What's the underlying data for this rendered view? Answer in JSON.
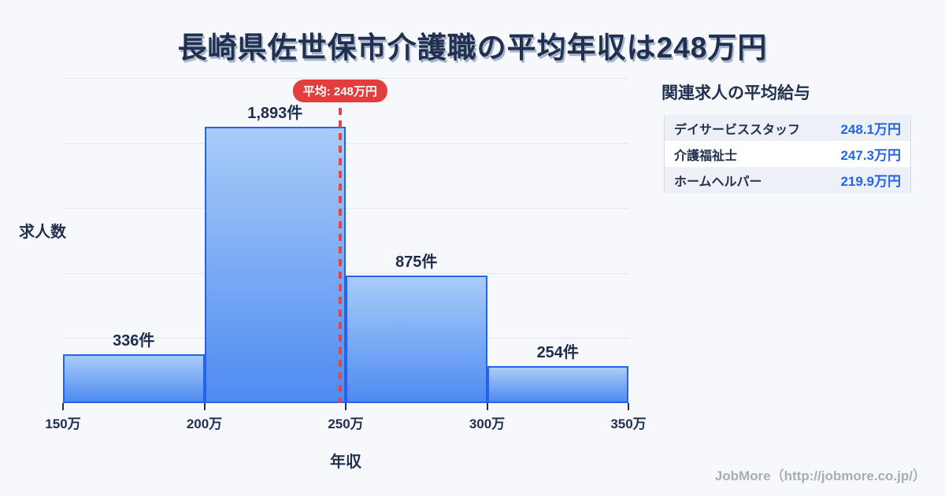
{
  "title": "長崎県佐世保市介護職の平均年収は248万円",
  "chart_data": {
    "type": "bar",
    "title": "長崎県佐世保市介護職の平均年収は248万円",
    "xlabel": "年収",
    "ylabel": "求人数",
    "x_tick_labels": [
      "150万",
      "200万",
      "250万",
      "300万",
      "350万"
    ],
    "x_range_man_yen": [
      150,
      350
    ],
    "bin_width_man_yen": 50,
    "categories": [
      "150万-200万",
      "200万-250万",
      "250万-300万",
      "300万-350万"
    ],
    "values": [
      336,
      1893,
      875,
      254
    ],
    "bar_labels": [
      "336件",
      "1,893件",
      "875件",
      "254件"
    ],
    "average_line": {
      "value_man_yen": 248,
      "label": "平均: 248万円"
    },
    "ylim": [
      0,
      2230
    ],
    "grid": "horizontal gridlines only, y-axis unlabeled",
    "legend": "none",
    "colors": {
      "bar_fill_top": "#a9ccf8",
      "bar_fill_bottom": "#4e8bf1",
      "bar_border": "#2563eb",
      "average_line_red": "#e54545",
      "badge_bg": "#e33d3d",
      "badge_text": "#ffffff",
      "gridline": "#e3e8ef",
      "text_navy": "#22304f",
      "value_blue": "#2563eb",
      "background": "#f7f8fb"
    }
  },
  "side_panel": {
    "title": "関連求人の平均給与",
    "rows": [
      {
        "label": "デイサービススタッフ",
        "value": "248.1万円"
      },
      {
        "label": "介護福祉士",
        "value": "247.3万円"
      },
      {
        "label": "ホームヘルパー",
        "value": "219.9万円"
      }
    ]
  },
  "footer": {
    "credit": "JobMore（http://jobmore.co.jp/）"
  }
}
